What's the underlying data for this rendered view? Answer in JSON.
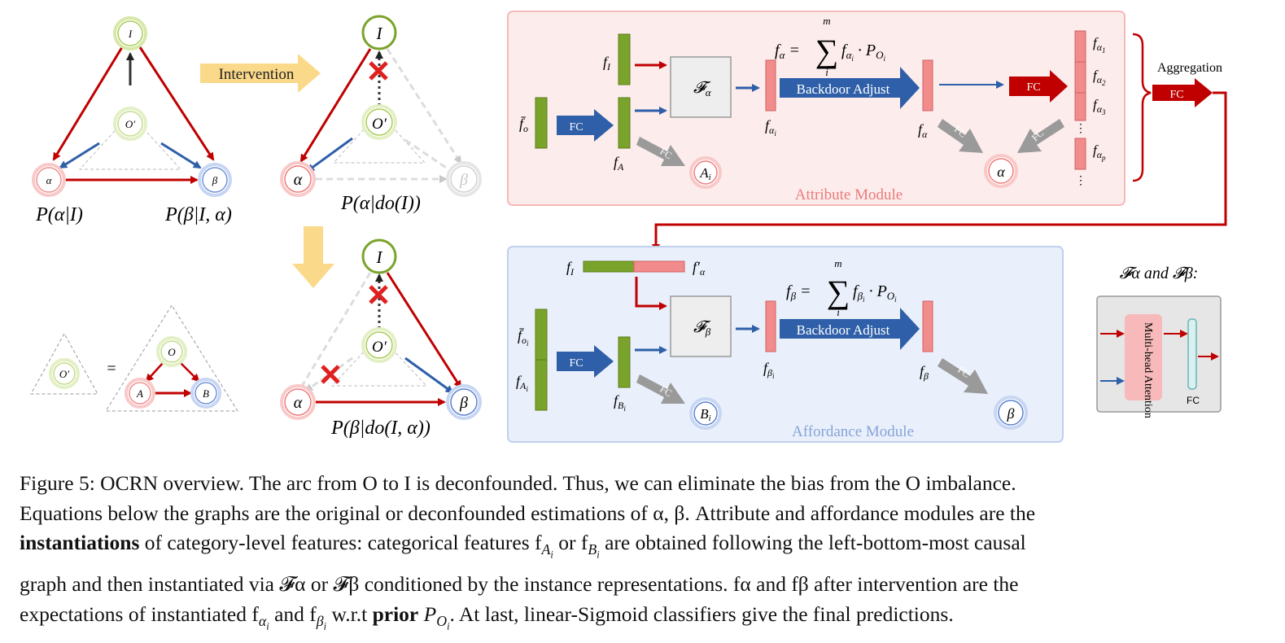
{
  "graphs": {
    "node_I": "I",
    "node_O_prime": "O′",
    "node_O": "O",
    "node_alpha": "α",
    "node_beta": "β",
    "node_A": "A",
    "node_B": "B",
    "equals": "=",
    "intervention_label": "Intervention",
    "eq_p_alpha_I": "P(α|I)",
    "eq_p_beta_I_alpha": "P(β|I, α)",
    "eq_p_alpha_do_I": "P(α|do(I))",
    "eq_p_beta_do_I_alpha": "P(β|do(I, α))"
  },
  "attribute_module": {
    "title": "Attribute Module",
    "f_I": "f",
    "f_I_sub": "I",
    "f_o_bar": "f̄",
    "f_o_sub": "o",
    "fc": "FC",
    "f_A": "f",
    "f_A_sub": "A",
    "A_i": "A",
    "F_alpha": "𝓕",
    "F_alpha_sub": "α",
    "f_alpha_i": "f",
    "f_alpha_i_sub": "α",
    "backdoor": "Backdoor Adjust",
    "f_alpha": "f",
    "f_alpha_sub": "α",
    "equation_lhs": "f",
    "equation_sum_top": "m",
    "equation_sum_bottom": "i",
    "alpha_out": "α",
    "aggregation": "Aggregation",
    "f_alpha_list": [
      "1",
      "2",
      "3",
      "p"
    ]
  },
  "affordance_module": {
    "title": "Affordance Module",
    "f_alpha_prime": "f′",
    "F_beta": "𝓕",
    "F_beta_sub": "β",
    "f_beta_i_sub": "β",
    "f_B_sub": "B",
    "B_i": "B",
    "backdoor": "Backdoor Adjust",
    "beta_out": "β",
    "fc": "FC"
  },
  "legend_box": {
    "title": "𝓕α and 𝓕β:",
    "attention": "Multi-head Attention",
    "fc": "FC"
  },
  "caption": {
    "line1": "Figure 5: OCRN overview. The arc from O to I is deconfounded. Thus, we can eliminate the bias from the O imbalance.",
    "line2": "Equations below the graphs are the original or deconfounded estimations of α, β. Attribute and affordance modules are the",
    "line3_bold": "instantiations",
    "line3_rest": " of category-level features: categorical features f",
    "line3_mid": " or f",
    "line3_end": " are obtained following the left-bottom-most causal",
    "line4": "graph and then instantiated via 𝓕α or 𝓕β conditioned by the instance representations. fα and fβ after intervention are the",
    "line5_a": "expectations of instantiated f",
    "line5_b": " and f",
    "line5_c": " w.r.t ",
    "line5_bold": "prior",
    "line5_d": " P",
    "line5_e": ". At last, linear-Sigmoid classifiers give the final predictions."
  },
  "colors": {
    "red": "#c00000",
    "blue": "#2e5fa8",
    "green": "#7aa32b",
    "pink": "#f28b8b",
    "attr_bg": "#fdecec",
    "aff_bg": "#eaf0fb",
    "gray_arrow": "#9a9a9a",
    "yellow_arrow": "#fbd98a"
  }
}
